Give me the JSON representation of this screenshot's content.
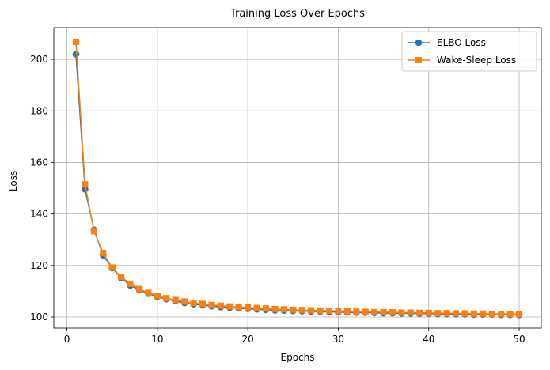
{
  "chart_data": {
    "type": "line",
    "title": "Training Loss Over Epochs",
    "xlabel": "Epochs",
    "ylabel": "Loss",
    "xlim": [
      -1.45,
      52.45
    ],
    "ylim": [
      95.7,
      212.3
    ],
    "xticks": [
      0,
      10,
      20,
      30,
      40,
      50
    ],
    "yticks": [
      100,
      120,
      140,
      160,
      180,
      200
    ],
    "grid": true,
    "legend_position": "top-right",
    "x": [
      1,
      2,
      3,
      4,
      5,
      6,
      7,
      8,
      9,
      10,
      11,
      12,
      13,
      14,
      15,
      16,
      17,
      18,
      19,
      20,
      21,
      22,
      23,
      24,
      25,
      26,
      27,
      28,
      29,
      30,
      31,
      32,
      33,
      34,
      35,
      36,
      37,
      38,
      39,
      40,
      41,
      42,
      43,
      44,
      45,
      46,
      47,
      48,
      49,
      50
    ],
    "series": [
      {
        "name": "ELBO Loss",
        "color": "#1f77b4",
        "marker": "circle",
        "values": [
          202.0,
          149.6,
          133.8,
          124.0,
          119.0,
          115.2,
          112.3,
          110.5,
          109.1,
          107.9,
          107.0,
          106.2,
          105.5,
          105.0,
          104.6,
          104.2,
          103.9,
          103.6,
          103.4,
          103.2,
          103.0,
          102.8,
          102.6,
          102.5,
          102.4,
          102.3,
          102.2,
          102.1,
          102.0,
          101.9,
          101.8,
          101.7,
          101.7,
          101.6,
          101.5,
          101.5,
          101.4,
          101.4,
          101.3,
          101.3,
          101.2,
          101.2,
          101.1,
          101.1,
          101.0,
          101.0,
          101.0,
          100.9,
          100.9,
          100.8
        ]
      },
      {
        "name": "Wake-Sleep Loss",
        "color": "#ff7f0e",
        "marker": "square",
        "values": [
          206.8,
          151.5,
          133.3,
          124.8,
          119.2,
          115.6,
          112.9,
          110.9,
          109.4,
          108.2,
          107.3,
          106.6,
          106.0,
          105.5,
          105.1,
          104.7,
          104.4,
          104.1,
          103.9,
          103.7,
          103.5,
          103.3,
          103.1,
          103.0,
          102.8,
          102.7,
          102.6,
          102.5,
          102.4,
          102.3,
          102.2,
          102.1,
          102.0,
          101.9,
          101.9,
          101.8,
          101.7,
          101.7,
          101.6,
          101.6,
          101.5,
          101.5,
          101.4,
          101.4,
          101.3,
          101.3,
          101.2,
          101.2,
          101.2,
          101.1
        ]
      }
    ]
  }
}
